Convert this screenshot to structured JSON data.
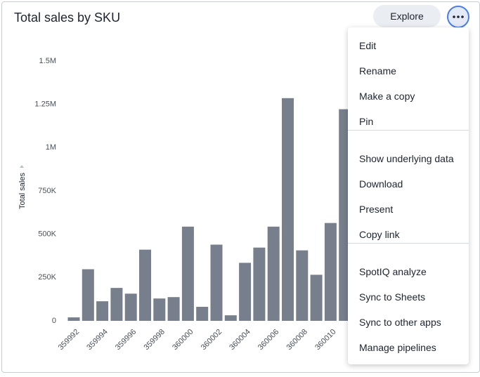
{
  "chart_data": {
    "type": "bar",
    "title": "Total sales by SKU",
    "y_label": "Total sales",
    "categories": [
      "359992",
      null,
      "359994",
      null,
      "359996",
      null,
      "359998",
      null,
      "360000",
      null,
      "360002",
      null,
      "360004",
      null,
      "360006",
      null,
      "360008",
      null,
      "360010",
      null
    ],
    "values": [
      20000,
      298000,
      113000,
      190000,
      157000,
      411000,
      129000,
      137000,
      544000,
      81000,
      440000,
      32000,
      335000,
      423000,
      544000,
      1286000,
      407000,
      266000,
      565000,
      1222000
    ],
    "color": "#777e8c",
    "ylim": [
      0,
      1500000
    ],
    "yticks": [
      0,
      {
        "value": 250000,
        "label": "250K"
      },
      {
        "value": 500000,
        "label": "500K"
      },
      {
        "value": 750000,
        "label": "750K"
      },
      {
        "value": 1000000,
        "label": "1M"
      },
      {
        "value": 1250000,
        "label": "1.25M"
      },
      {
        "value": 1500000,
        "label": "1.5M"
      }
    ]
  },
  "buttons": {
    "explore": "Explore"
  },
  "menu": {
    "groups": [
      [
        "Edit",
        "Rename",
        "Make a copy",
        "Pin"
      ],
      [
        "Show underlying data",
        "Download",
        "Present",
        "Copy link"
      ],
      [
        "SpotIQ analyze",
        "Sync to Sheets",
        "Sync to other apps",
        "Manage pipelines"
      ]
    ]
  }
}
